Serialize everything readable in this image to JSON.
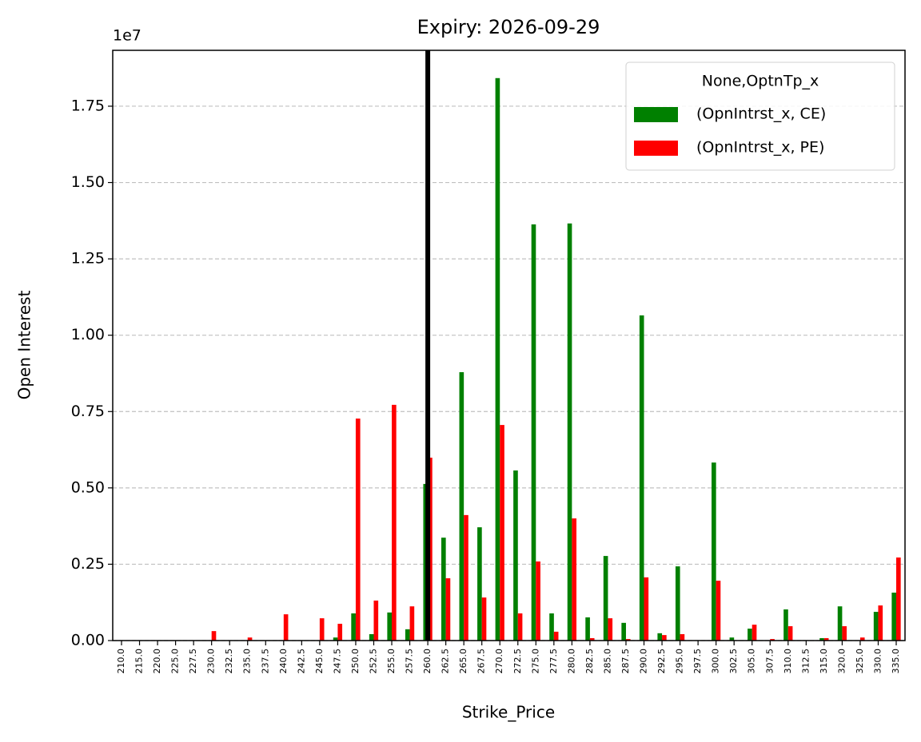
{
  "chart_data": {
    "type": "bar",
    "title": "Expiry: 2026-09-29",
    "x_label": "Strike_Price",
    "y_label": "Open Interest",
    "y_offset_text": "1e7",
    "legend_title": "None,OptnTp_x",
    "legend_position": "upper right",
    "grid": true,
    "vline": 260.0,
    "vline_color": "#000000",
    "categories": [
      "210.0",
      "215.0",
      "220.0",
      "225.0",
      "227.5",
      "230.0",
      "232.5",
      "235.0",
      "237.5",
      "240.0",
      "242.5",
      "245.0",
      "247.5",
      "250.0",
      "252.5",
      "255.0",
      "257.5",
      "260.0",
      "262.5",
      "265.0",
      "267.5",
      "270.0",
      "272.5",
      "275.0",
      "277.5",
      "280.0",
      "282.5",
      "285.0",
      "287.5",
      "290.0",
      "292.5",
      "295.0",
      "297.5",
      "300.0",
      "302.5",
      "305.0",
      "307.5",
      "310.0",
      "312.5",
      "315.0",
      "320.0",
      "325.0",
      "330.0",
      "335.0"
    ],
    "series": [
      {
        "name": "(OpnIntrst_x, CE)",
        "color": "#008000",
        "values": [
          0,
          0,
          0,
          0,
          0,
          0,
          0,
          0,
          0,
          0,
          0,
          0,
          100000,
          890000,
          210000,
          920000,
          370000,
          5130000,
          3370000,
          8790000,
          3710000,
          18420000,
          5570000,
          13630000,
          890000,
          13660000,
          760000,
          2770000,
          580000,
          10650000,
          240000,
          2430000,
          0,
          5830000,
          100000,
          390000,
          0,
          1020000,
          0,
          80000,
          1120000,
          0,
          940000,
          1570000
        ]
      },
      {
        "name": "(OpnIntrst_x, PE)",
        "color": "#ff0000",
        "values": [
          0,
          0,
          0,
          0,
          0,
          310000,
          0,
          100000,
          0,
          860000,
          0,
          730000,
          550000,
          7270000,
          1310000,
          7720000,
          1120000,
          5990000,
          2040000,
          4110000,
          1410000,
          7060000,
          890000,
          2590000,
          290000,
          4000000,
          80000,
          730000,
          50000,
          2070000,
          180000,
          210000,
          0,
          1960000,
          0,
          520000,
          50000,
          470000,
          0,
          80000,
          470000,
          100000,
          1150000,
          2720000
        ]
      }
    ],
    "ylim": [
      0,
      19330000
    ],
    "yticks": [
      {
        "value": 0,
        "label": "0.00"
      },
      {
        "value": 2500000,
        "label": "0.25"
      },
      {
        "value": 5000000,
        "label": "0.50"
      },
      {
        "value": 7500000,
        "label": "0.75"
      },
      {
        "value": 10000000,
        "label": "1.00"
      },
      {
        "value": 12500000,
        "label": "1.25"
      },
      {
        "value": 15000000,
        "label": "1.50"
      },
      {
        "value": 17500000,
        "label": "1.75"
      }
    ]
  }
}
